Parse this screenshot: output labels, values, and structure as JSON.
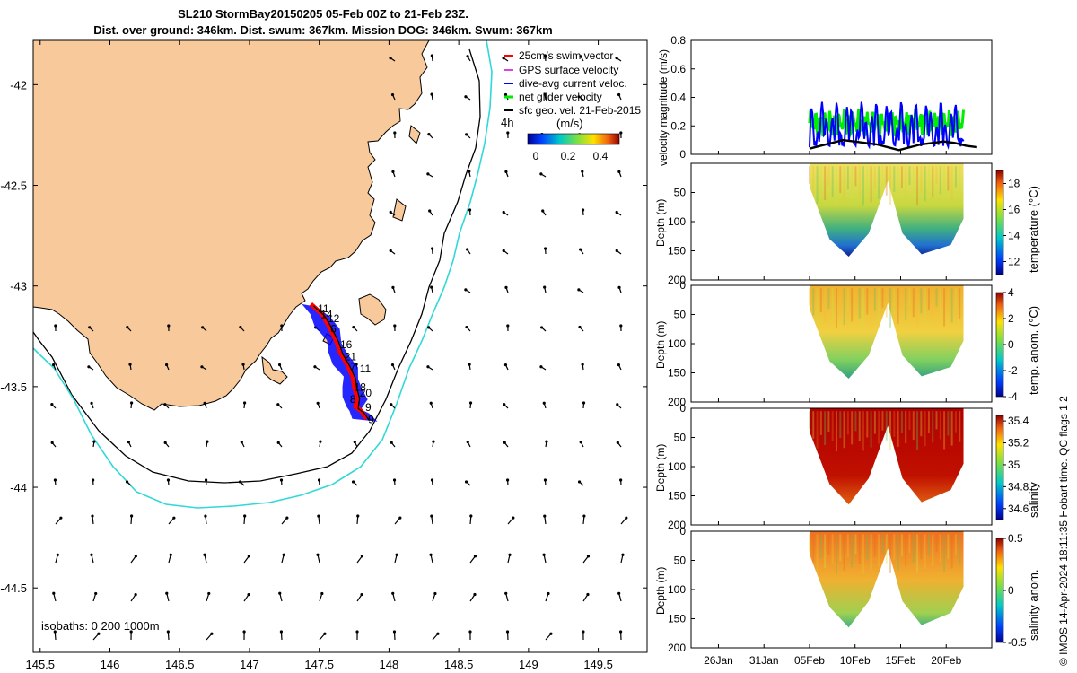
{
  "title": {
    "line1": "SL210 StormBay20150205 05-Feb 00Z to 21-Feb 23Z.",
    "line2": "Dist. over ground: 346km. Dist. swum: 367km. Mission DOG: 346km. Swum: 367km"
  },
  "footer_note": "© IMOS 14-Apr-2024 18:11:35 Hobart time. QC flags 1  2",
  "colors": {
    "land": "#f7c99b",
    "swim": "#ff0000",
    "gps": "#e040e0",
    "dive": "#0000ff",
    "net": "#00ee00",
    "geo": "#000000",
    "isobath200": "#000000",
    "isobath1000": "#30d8d8"
  },
  "chart_data": [
    {
      "type": "scatter",
      "name": "trajectory-map",
      "xlim": [
        145.45,
        149.85
      ],
      "ylim": [
        -44.82,
        -41.78
      ],
      "xticks": [
        145.5,
        146,
        146.5,
        147,
        147.5,
        148,
        148.5,
        149,
        149.5
      ],
      "xtick_labels": [
        "145.5",
        "146",
        "146.5",
        "147",
        "147.5",
        "148",
        "148.5",
        "149",
        "149.5"
      ],
      "yticks": [
        -42,
        -42.5,
        -43,
        -43.5,
        -44,
        -44.5
      ],
      "ytick_labels": [
        "-42",
        "-42.5",
        "-43",
        "-43.5",
        "-44",
        "-44.5"
      ],
      "legend": [
        {
          "label": "25cm/s swim vector",
          "color": "#ff0000"
        },
        {
          "label": "GPS surface velocity",
          "color": "#e040e0"
        },
        {
          "label": "dive-avg current veloc.",
          "color": "#0000ff"
        },
        {
          "label": "net glider velocity",
          "color": "#00ee00"
        },
        {
          "label": "sfc geo. vel. 21-Feb-2015",
          "color": "#000000"
        }
      ],
      "scale_label": "4h",
      "colorbar": {
        "label": "(m/s)",
        "ticks": [
          "0",
          "0.2",
          "0.4"
        ],
        "range": [
          0,
          0.5
        ]
      },
      "isobath_label": "isobaths: 0  200  1000m",
      "track": [
        [
          147.44,
          -43.09
        ],
        [
          147.52,
          -43.14
        ],
        [
          147.57,
          -43.2
        ],
        [
          147.62,
          -43.27
        ],
        [
          147.65,
          -43.33
        ],
        [
          147.7,
          -43.39
        ],
        [
          147.74,
          -43.45
        ],
        [
          147.75,
          -43.5
        ],
        [
          147.77,
          -43.55
        ],
        [
          147.76,
          -43.6
        ],
        [
          147.8,
          -43.62
        ],
        [
          147.84,
          -43.66
        ]
      ],
      "day_labels": [
        {
          "text": "11",
          "lon": 147.49,
          "lat": -43.13
        },
        {
          "text": "14",
          "lon": 147.51,
          "lat": -43.16
        },
        {
          "text": "12",
          "lon": 147.56,
          "lat": -43.18
        },
        {
          "text": "6",
          "lon": 147.58,
          "lat": -43.23
        },
        {
          "text": "16",
          "lon": 147.65,
          "lat": -43.31
        },
        {
          "text": "21",
          "lon": 147.68,
          "lat": -43.37
        },
        {
          "text": "7",
          "lon": 147.72,
          "lat": -43.42
        },
        {
          "text": "11",
          "lon": 147.79,
          "lat": -43.43
        },
        {
          "text": "18",
          "lon": 147.75,
          "lat": -43.52
        },
        {
          "text": "20",
          "lon": 147.79,
          "lat": -43.55
        },
        {
          "text": "8",
          "lon": 147.72,
          "lat": -43.58
        },
        {
          "text": "9",
          "lon": 147.83,
          "lat": -43.62
        },
        {
          "text": "9",
          "lon": 147.85,
          "lat": -43.68
        }
      ]
    },
    {
      "type": "line",
      "name": "velocity-panel",
      "ylabel": "velocity magnitude (m/s)",
      "ylim": [
        0,
        0.8
      ],
      "yticks": [
        0,
        0.2,
        0.4,
        0.6,
        0.8
      ],
      "ytick_labels": [
        "0",
        "0.2",
        "0.4",
        "0.6",
        "0.8"
      ],
      "series": [
        {
          "name": "net glider velocity",
          "color": "#00ee00",
          "band": [
            0.12,
            0.32
          ]
        },
        {
          "name": "dive-avg current veloc.",
          "color": "#0000ff",
          "band": [
            0.05,
            0.48
          ]
        },
        {
          "name": "sfc geo. vel.",
          "color": "#000000",
          "values": [
            0.04,
            0.06,
            0.08,
            0.1,
            0.09,
            0.08,
            0.07,
            0.05,
            0.03,
            0.05,
            0.07,
            0.08,
            0.09,
            0.08,
            0.06,
            0.05
          ]
        }
      ]
    },
    {
      "type": "heatmap",
      "name": "temperature-panel",
      "ylabel": "Depth (m)",
      "cbar_label": "temperature (°C)",
      "ylim": [
        200,
        0
      ],
      "yticks": [
        50,
        100,
        150,
        200
      ],
      "ytick_labels": [
        "50",
        "100",
        "150",
        "200"
      ],
      "cticks": [
        "12",
        "14",
        "16",
        "18"
      ],
      "crange": [
        11,
        19
      ]
    },
    {
      "type": "heatmap",
      "name": "temp-anomaly-panel",
      "ylabel": "Depth (m)",
      "cbar_label": "temp. anom. (°C)",
      "ylim": [
        200,
        0
      ],
      "yticks": [
        0,
        50,
        100,
        150,
        200
      ],
      "ytick_labels": [
        "0",
        "50",
        "100",
        "150",
        "200"
      ],
      "cticks": [
        "-4",
        "-2",
        "0",
        "2",
        "4"
      ],
      "crange": [
        -4,
        4
      ]
    },
    {
      "type": "heatmap",
      "name": "salinity-panel",
      "ylabel": "Depth (m)",
      "cbar_label": "salinity",
      "ylim": [
        200,
        0
      ],
      "yticks": [
        0,
        50,
        100,
        150,
        200
      ],
      "ytick_labels": [
        "0",
        "50",
        "100",
        "150",
        "200"
      ],
      "cticks": [
        "34.6",
        "34.8",
        "35",
        "35.2",
        "35.4"
      ],
      "crange": [
        34.5,
        35.45
      ]
    },
    {
      "type": "heatmap",
      "name": "salinity-anomaly-panel",
      "ylabel": "Depth (m)",
      "cbar_label": "salinity anom.",
      "ylim": [
        200,
        0
      ],
      "yticks": [
        0,
        50,
        100,
        150,
        200
      ],
      "ytick_labels": [
        "0",
        "50",
        "100",
        "150",
        "200"
      ],
      "cticks": [
        "-0.5",
        "0",
        "0.5"
      ],
      "crange": [
        -0.5,
        0.5
      ],
      "xtick_labels": [
        "26Jan",
        "31Jan",
        "05Feb",
        "10Feb",
        "15Feb",
        "20Feb"
      ]
    }
  ]
}
